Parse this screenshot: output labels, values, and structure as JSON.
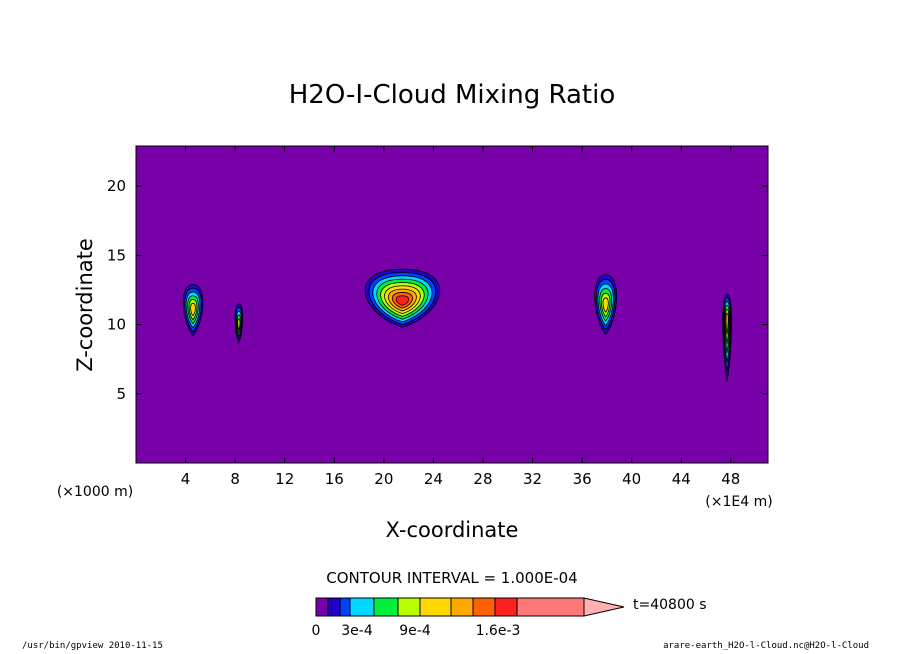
{
  "chart_data": {
    "type": "contour",
    "title": "H2O-I-Cloud Mixing Ratio",
    "xlabel": "X-coordinate",
    "ylabel": "Z-coordinate",
    "x_ticks": [
      4,
      8,
      12,
      16,
      20,
      24,
      28,
      32,
      36,
      40,
      44,
      48
    ],
    "y_ticks": [
      5,
      10,
      15,
      20
    ],
    "x_units_left": "(×1000 m)",
    "x_units_right": "(×1E4 m)",
    "xlim": [
      0,
      51
    ],
    "ylim": [
      0,
      22.9
    ],
    "contour_interval_text": "CONTOUR INTERVAL = 1.000E-04",
    "time_label": "t=40800 s",
    "colorbar": {
      "colors": [
        "#7800a8",
        "#2200c8",
        "#0040ff",
        "#00d8ff",
        "#00f040",
        "#b8ff00",
        "#ffd800",
        "#ffa800",
        "#ff6000",
        "#ff2020",
        "#ff7878"
      ],
      "arrow_color": "#ffb0b0",
      "labels": [
        "0",
        "3e-4",
        "9e-4",
        "1.6e-3"
      ]
    },
    "background_value_color": "#7800a8",
    "features": [
      {
        "x": 4.6,
        "z": 11.1,
        "x_half_width": 0.9,
        "z_top": 12.9,
        "z_bottom": 9.2,
        "max_level": 6
      },
      {
        "x": 8.3,
        "z": 10.0,
        "x_half_width": 0.35,
        "z_top": 11.5,
        "z_bottom": 8.7,
        "max_level": 5
      },
      {
        "x": 21.5,
        "z": 11.7,
        "x_half_width": 3.4,
        "z_top": 14.0,
        "z_bottom": 9.8,
        "max_level": 9
      },
      {
        "x": 37.9,
        "z": 11.4,
        "x_half_width": 1.0,
        "z_top": 13.6,
        "z_bottom": 9.3,
        "max_level": 6
      },
      {
        "x": 47.7,
        "z": 10.4,
        "x_half_width": 0.4,
        "z_top": 12.2,
        "z_bottom": 5.9,
        "max_level": 6
      }
    ]
  },
  "footer": {
    "left": "/usr/bin/gpview  2010-11-15",
    "right": "arare-earth_H2O-l-Cloud.nc@H2O-l-Cloud"
  }
}
